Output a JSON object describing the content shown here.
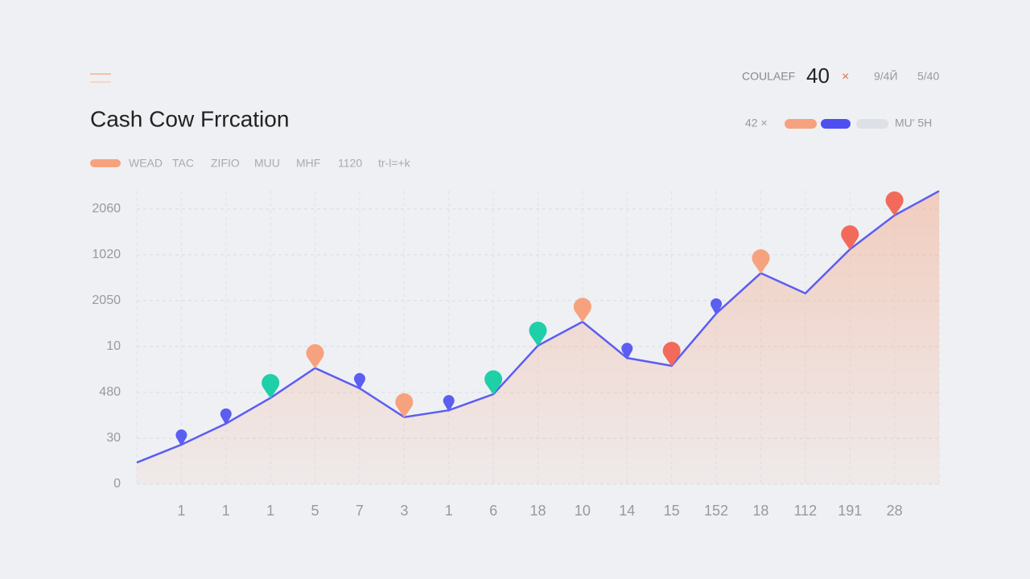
{
  "header": {
    "corner_mark": null,
    "meta": [
      "COULAEF",
      "40",
      "×",
      "9/4Й",
      "5/40"
    ],
    "legend_row": [
      "42 ×",
      "MU' 5H"
    ],
    "filters": [
      "WEAD",
      "TAC",
      "ZIFIO",
      "MUU",
      "MHF",
      "1120",
      "tr-l=+k"
    ]
  },
  "chart_data": {
    "type": "line",
    "title": "Cash Cow Frrcation",
    "categories": [
      null,
      "1",
      "1",
      "1",
      "5",
      "7",
      "3",
      "1",
      "6",
      "18",
      "10",
      "14",
      "15",
      "152",
      "18",
      "112",
      "191",
      "28",
      null
    ],
    "series": [
      {
        "color": "#5b5ef0",
        "area_color": "#f6a27f",
        "values": [
          0.47,
          0.86,
          1.32,
          1.88,
          2.53,
          2.09,
          1.46,
          1.61,
          1.96,
          3.02,
          3.54,
          2.75,
          2.58,
          3.72,
          4.6,
          4.16,
          5.12,
          5.86,
          6.39
        ],
        "marker_colors": [
          null,
          "#5b5ef0",
          "#5b5ef0",
          "#1ecfa8",
          "#f6a27f",
          "#5b5ef0",
          "#f6a27f",
          "#5b5ef0",
          "#1ecfa8",
          "#1ecfa8",
          "#f6a27f",
          "#5b5ef0",
          "#f26a5a",
          "#5b5ef0",
          "#f6a27f",
          null,
          "#f26a5a",
          "#f26a5a",
          null
        ]
      }
    ],
    "ylim": [
      0,
      6.4
    ],
    "yticks": [
      0,
      {
        "value": 1,
        "label": "30"
      },
      {
        "value": 2,
        "label": "480"
      },
      {
        "value": 3,
        "label": "10"
      },
      {
        "value": 4,
        "label": "2050"
      },
      {
        "value": 5,
        "label": "1020"
      },
      {
        "value": 6,
        "label": "2060"
      }
    ],
    "grid": true
  }
}
